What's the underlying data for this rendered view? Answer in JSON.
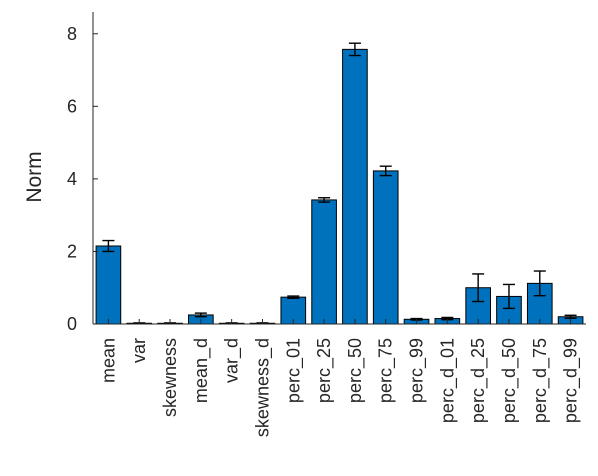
{
  "chart_data": {
    "type": "bar",
    "ylabel": "Norm",
    "xlabel": "",
    "title": "",
    "ylim": [
      0,
      8.6
    ],
    "yticks": [
      0,
      2,
      4,
      6,
      8
    ],
    "categories": [
      "mean",
      "var",
      "skewness",
      "mean_d",
      "var_d",
      "skewness_d",
      "perc_01",
      "perc_25",
      "perc_50",
      "perc_75",
      "perc_99",
      "perc_d_01",
      "perc_d_25",
      "perc_d_50",
      "perc_d_75",
      "perc_d_99"
    ],
    "values": [
      2.15,
      0.02,
      0.02,
      0.25,
      0.02,
      0.02,
      0.74,
      3.42,
      7.57,
      4.22,
      0.13,
      0.15,
      1.0,
      0.76,
      1.12,
      0.2
    ],
    "errors": [
      0.15,
      0.01,
      0.01,
      0.05,
      0.01,
      0.01,
      0.03,
      0.06,
      0.17,
      0.13,
      0.02,
      0.03,
      0.38,
      0.33,
      0.34,
      0.04
    ],
    "bar_color": "#0072BD",
    "grid": false,
    "legend": "none"
  }
}
